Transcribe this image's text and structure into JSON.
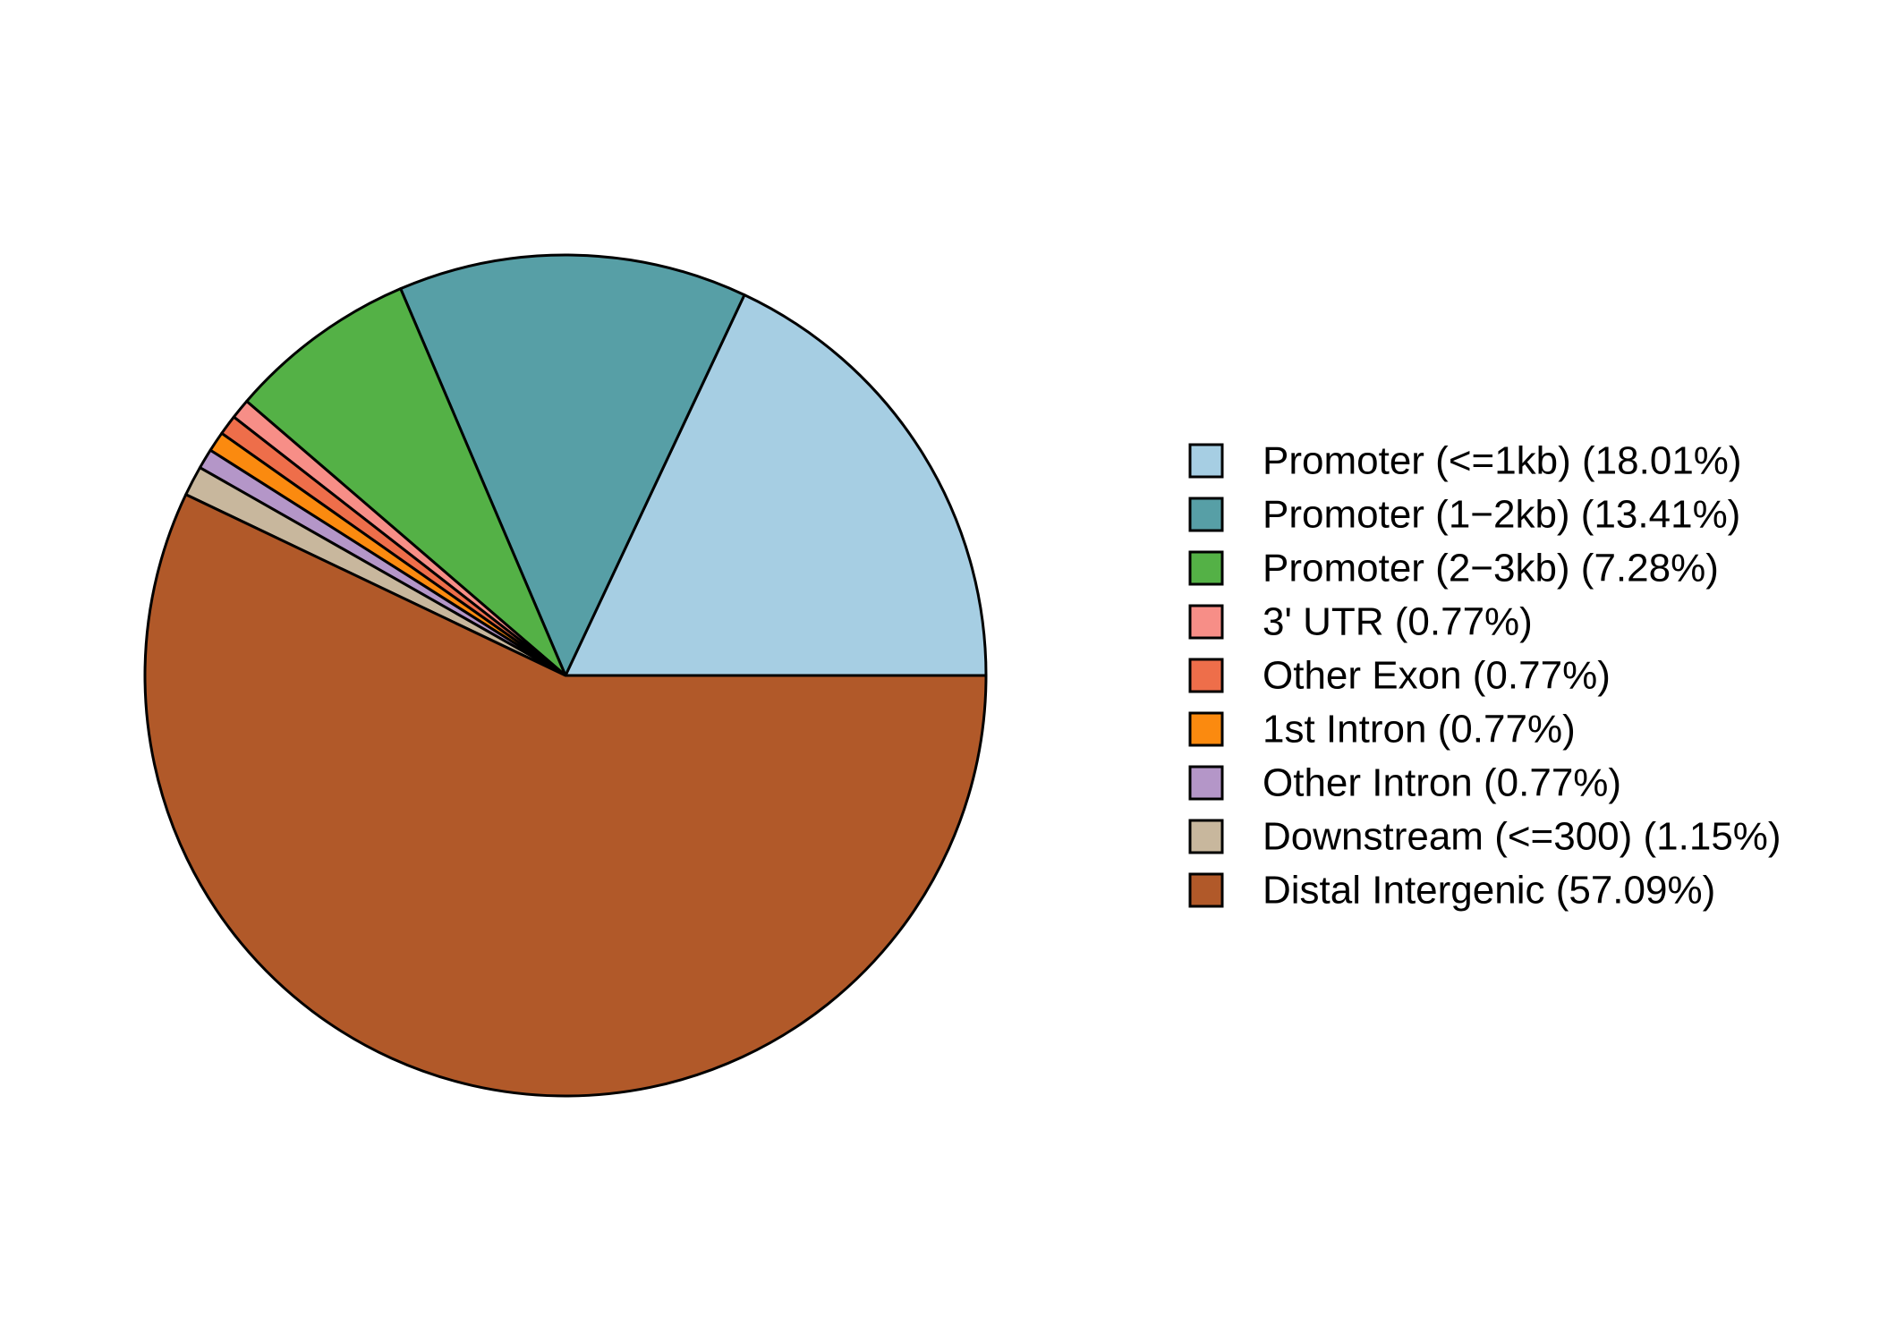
{
  "chart_data": {
    "type": "pie",
    "direction": "counterclockwise",
    "start_angle_deg": 0,
    "legend_position": "right",
    "slices": [
      {
        "label": "Promoter (<=1kb) (18.01%)",
        "category": "Promoter (<=1kb)",
        "value": 18.01,
        "color": "#A6CEE3"
      },
      {
        "label": "Promoter (1−2kb) (13.41%)",
        "category": "Promoter (1−2kb)",
        "value": 13.41,
        "color": "#579FA6"
      },
      {
        "label": "Promoter (2−3kb) (7.28%)",
        "category": "Promoter (2−3kb)",
        "value": 7.28,
        "color": "#54B146"
      },
      {
        "label": "3' UTR (0.77%)",
        "category": "3' UTR",
        "value": 0.77,
        "color": "#F78E87"
      },
      {
        "label": "Other Exon (0.77%)",
        "category": "Other Exon",
        "value": 0.77,
        "color": "#EE6E4A"
      },
      {
        "label": "1st Intron (0.77%)",
        "category": "1st Intron",
        "value": 0.77,
        "color": "#FB8A0F"
      },
      {
        "label": "Other Intron (0.77%)",
        "category": "Other Intron",
        "value": 0.77,
        "color": "#B496C8"
      },
      {
        "label": "Downstream (<=300) (1.15%)",
        "category": "Downstream (<=300)",
        "value": 1.15,
        "color": "#C8B79D"
      },
      {
        "label": "Distal Intergenic (57.09%)",
        "category": "Distal Intergenic",
        "value": 57.09,
        "color": "#B15929"
      }
    ]
  }
}
